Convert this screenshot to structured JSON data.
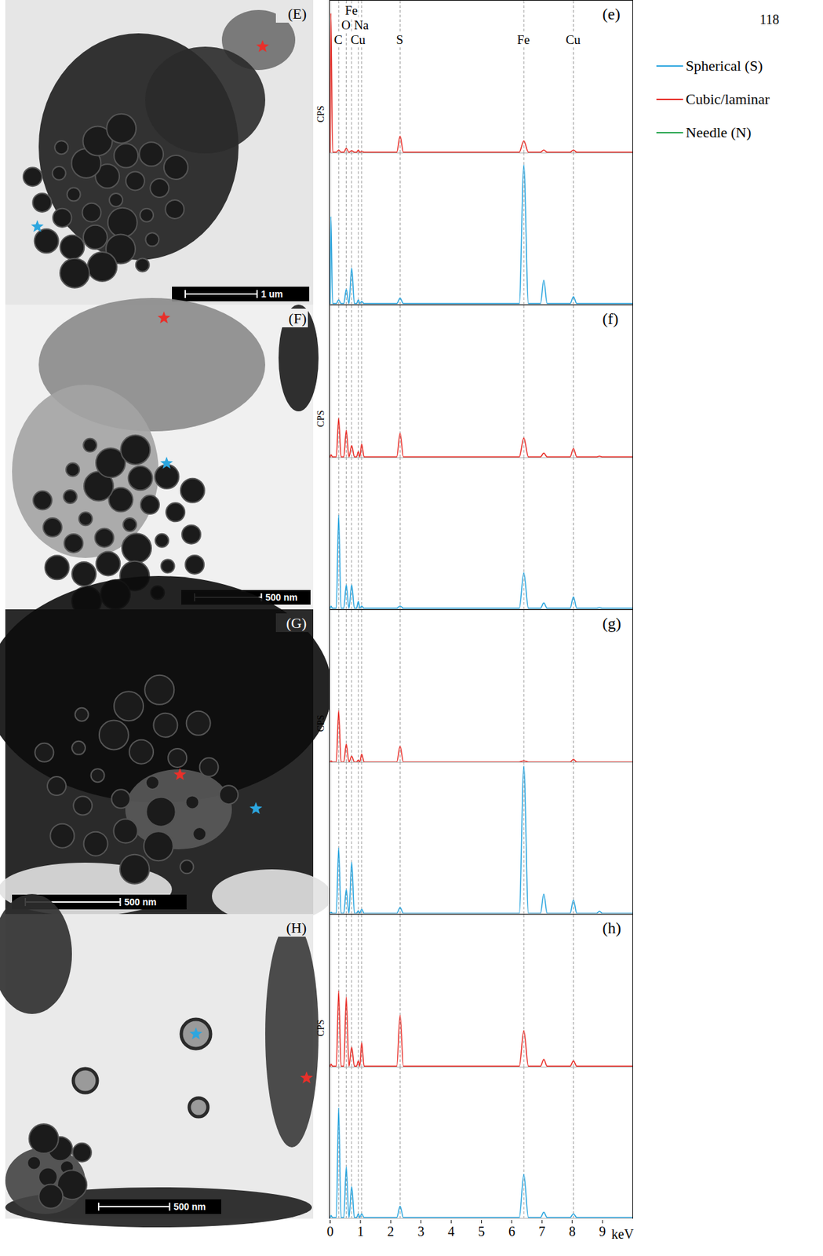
{
  "page_number": "118",
  "legend": {
    "position": "top-right",
    "entries": [
      {
        "name": "Spherical (S)",
        "color": "#2ca6df"
      },
      {
        "name": "Cubic/laminar",
        "color": "#e8302a"
      },
      {
        "name": "Needle (N)",
        "color": "#22a34a"
      }
    ]
  },
  "images": [
    {
      "label": "(E)",
      "scale_bar": "1 um"
    },
    {
      "label": "(F)",
      "scale_bar": "500 nm"
    },
    {
      "label": "(G)",
      "scale_bar": "500 nm"
    },
    {
      "label": "(H)",
      "scale_bar": "500 nm"
    }
  ],
  "element_lines": [
    {
      "label": "C",
      "x": 0.28
    },
    {
      "label": "O",
      "x": 0.53
    },
    {
      "label": "Fe",
      "x": 0.71
    },
    {
      "label": "Cu",
      "x": 0.93
    },
    {
      "label": "Na",
      "x": 1.04
    },
    {
      "label": "S",
      "x": 2.31
    },
    {
      "label": "Fe",
      "x": 6.4
    },
    {
      "label": "Cu",
      "x": 8.04
    }
  ],
  "chart_data": [
    {
      "type": "line",
      "title": "(e)",
      "ylabel": "CPS",
      "tick_labels": false,
      "xlim": [
        0,
        10
      ],
      "xticks": [
        0,
        1,
        2,
        3,
        4,
        5,
        6,
        7,
        8,
        9
      ],
      "ylim": [
        0,
        100
      ],
      "x": [
        0,
        0.02,
        0.08,
        0.2,
        0.28,
        0.36,
        0.45,
        0.53,
        0.62,
        0.71,
        0.8,
        0.87,
        0.93,
        0.98,
        1.04,
        1.12,
        2.2,
        2.31,
        2.42,
        6.25,
        6.4,
        6.55,
        6.95,
        7.06,
        7.17,
        7.93,
        8.04,
        8.15,
        8.8,
        8.9,
        9.0,
        10
      ],
      "series": [
        {
          "name": "Cubic/laminar",
          "color": "#e8302a",
          "values": [
            0,
            92,
            0.5,
            0.5,
            2,
            0.5,
            0.5,
            3,
            0.5,
            1.5,
            0.5,
            0.5,
            2,
            0.5,
            1,
            0.5,
            0.5,
            11,
            0.5,
            0.5,
            8,
            0.5,
            0.5,
            2,
            0.5,
            0.5,
            2,
            0.5,
            0.5,
            0.5,
            0.5,
            0.5
          ]
        },
        {
          "name": "Spherical (S)",
          "color": "#2ca6df",
          "values": [
            0,
            58,
            0.5,
            0.5,
            3,
            0.5,
            0.5,
            10,
            0.5,
            24,
            0.5,
            0.5,
            3,
            0.5,
            2,
            0.5,
            0.5,
            4,
            0.5,
            0.5,
            92,
            0.5,
            0.5,
            16,
            0.5,
            0.5,
            5,
            0.5,
            0.5,
            0.5,
            0.5,
            0.5
          ]
        }
      ]
    },
    {
      "type": "line",
      "title": "(f)",
      "ylabel": "CPS",
      "tick_labels": false,
      "xlim": [
        0,
        10
      ],
      "xticks": [
        0,
        1,
        2,
        3,
        4,
        5,
        6,
        7,
        8,
        9
      ],
      "ylim": [
        0,
        100
      ],
      "x": [
        0,
        0.02,
        0.08,
        0.2,
        0.28,
        0.36,
        0.45,
        0.53,
        0.62,
        0.71,
        0.8,
        0.87,
        0.93,
        0.98,
        1.04,
        1.12,
        2.2,
        2.31,
        2.42,
        6.25,
        6.4,
        6.55,
        6.95,
        7.06,
        7.17,
        7.93,
        8.04,
        8.15,
        8.8,
        8.9,
        9.0,
        10
      ],
      "series": [
        {
          "name": "Cubic/laminar",
          "color": "#e8302a",
          "values": [
            0,
            2,
            0.5,
            0.5,
            26,
            0.5,
            0.5,
            18,
            0.5,
            8,
            0.5,
            0.5,
            4,
            0.5,
            9,
            0.5,
            0.5,
            16,
            0.5,
            0.5,
            13,
            0.5,
            0.5,
            3,
            0.5,
            0.5,
            6,
            0.5,
            0.5,
            1,
            0.5,
            0.5
          ]
        },
        {
          "name": "Spherical (S)",
          "color": "#2ca6df",
          "values": [
            0,
            2,
            0.5,
            0.5,
            62,
            0.5,
            0.5,
            16,
            0.5,
            16,
            0.5,
            0.5,
            5,
            0.5,
            2,
            0.5,
            0.5,
            2,
            0.5,
            0.5,
            24,
            0.5,
            0.5,
            4,
            0.5,
            0.5,
            8,
            0.5,
            0.5,
            1,
            0.5,
            0.5
          ]
        }
      ]
    },
    {
      "type": "line",
      "title": "(g)",
      "ylabel": "CPS",
      "tick_labels": false,
      "xlim": [
        0,
        10
      ],
      "xticks": [
        0,
        1,
        2,
        3,
        4,
        5,
        6,
        7,
        8,
        9
      ],
      "ylim": [
        0,
        200
      ],
      "x": [
        0,
        0.02,
        0.08,
        0.2,
        0.28,
        0.36,
        0.45,
        0.53,
        0.62,
        0.71,
        0.8,
        0.87,
        0.93,
        0.98,
        1.04,
        1.12,
        2.2,
        2.31,
        2.42,
        6.25,
        6.4,
        6.55,
        6.95,
        7.06,
        7.17,
        7.93,
        8.04,
        8.15,
        8.8,
        8.9,
        9.0,
        10
      ],
      "series": [
        {
          "name": "Cubic/laminar",
          "color": "#e8302a",
          "values": [
            0,
            2,
            0.5,
            0.5,
            68,
            0.5,
            0.5,
            24,
            0.5,
            8,
            0.5,
            0.5,
            3,
            0.5,
            11,
            0.5,
            0.5,
            21,
            0.5,
            0.5,
            2,
            0.5,
            0.5,
            0.5,
            0.5,
            0.5,
            4,
            0.5,
            0.5,
            0.5,
            0.5,
            0.5
          ]
        },
        {
          "name": "Spherical (S)",
          "color": "#2ca6df",
          "values": [
            0,
            2,
            0.5,
            0.5,
            87,
            0.5,
            0.5,
            32,
            0.5,
            68,
            0.5,
            0.5,
            4,
            0.5,
            6,
            0.5,
            0.5,
            8,
            0.5,
            0.5,
            195,
            0.5,
            0.5,
            26,
            0.5,
            0.5,
            18,
            0.5,
            0.5,
            3,
            0.5,
            0.5
          ]
        }
      ]
    },
    {
      "type": "line",
      "title": "(h)",
      "ylabel": "CPS",
      "xlabel": "keV",
      "tick_labels": "x",
      "xlim": [
        0,
        10
      ],
      "xticks": [
        0,
        1,
        2,
        3,
        4,
        5,
        6,
        7,
        8,
        9
      ],
      "ylim": [
        0,
        100
      ],
      "x": [
        0,
        0.02,
        0.08,
        0.2,
        0.28,
        0.36,
        0.45,
        0.53,
        0.62,
        0.71,
        0.8,
        0.87,
        0.93,
        0.98,
        1.04,
        1.12,
        2.2,
        2.31,
        2.42,
        6.25,
        6.4,
        6.55,
        6.95,
        7.06,
        7.17,
        7.93,
        8.04,
        8.15,
        8.8,
        8.9,
        9.0,
        10
      ],
      "series": [
        {
          "name": "Cubic/laminar",
          "color": "#e8302a",
          "values": [
            0,
            2,
            0.5,
            0.5,
            50,
            0.5,
            0.5,
            46,
            0.5,
            13,
            0.5,
            0.5,
            4,
            0.5,
            16,
            0.5,
            0.5,
            34,
            0.5,
            0.5,
            24,
            0.5,
            0.5,
            5,
            0.5,
            0.5,
            4,
            0.5,
            0.5,
            0.5,
            0.5,
            0.5
          ]
        },
        {
          "name": "Spherical (S)",
          "color": "#2ca6df",
          "values": [
            0,
            2,
            0.5,
            0.5,
            73,
            0.5,
            0.5,
            34,
            0.5,
            21,
            0.5,
            0.5,
            3,
            0.5,
            3,
            0.5,
            0.5,
            8,
            0.5,
            0.5,
            29,
            0.5,
            0.5,
            4,
            0.5,
            0.5,
            3,
            0.5,
            0.5,
            0.5,
            0.5,
            0.5
          ]
        }
      ]
    }
  ]
}
